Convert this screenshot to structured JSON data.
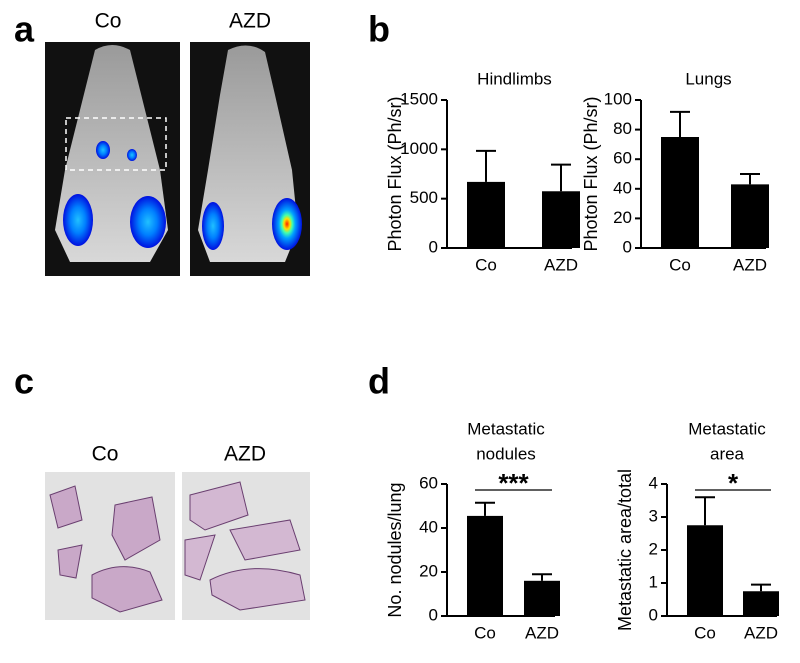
{
  "panels": [
    "a",
    "b",
    "c",
    "d"
  ],
  "image_labels": {
    "mouse": [
      "Co",
      "AZD"
    ],
    "histology": [
      "Co",
      "AZD"
    ]
  },
  "chart_data": [
    {
      "type": "bar",
      "title": [
        "Hindlimbs"
      ],
      "ylabel": "Photon Flux (Ph/sr)",
      "categories": [
        "Co",
        "AZD"
      ],
      "values": [
        670,
        575
      ],
      "errors": [
        315,
        270
      ],
      "color": "#000000",
      "ylim": [
        0,
        1500
      ],
      "yticks": [
        0,
        500,
        1000,
        1500
      ]
    },
    {
      "type": "bar",
      "title": [
        "Lungs"
      ],
      "ylabel": "Photon Flux (Ph/sr)",
      "categories": [
        "Co",
        "AZD"
      ],
      "values": [
        75,
        43
      ],
      "errors": [
        17,
        7
      ],
      "color": "#000000",
      "ylim": [
        0,
        100
      ],
      "yticks": [
        0,
        20,
        40,
        60,
        80,
        100
      ]
    },
    {
      "type": "bar",
      "title": [
        "Metastatic",
        "nodules"
      ],
      "ylabel": "No. nodules/lung",
      "categories": [
        "Co",
        "AZD"
      ],
      "values": [
        45.5,
        16
      ],
      "errors": [
        6,
        3
      ],
      "color": "#000000",
      "ylim": [
        0,
        60
      ],
      "yticks": [
        0,
        20,
        40,
        60
      ],
      "annotation": "***"
    },
    {
      "type": "bar",
      "title": [
        "Metastatic",
        "area"
      ],
      "ylabel": "Metastatic area/total",
      "categories": [
        "Co",
        "AZD"
      ],
      "values": [
        2.75,
        0.75
      ],
      "errors": [
        0.85,
        0.2
      ],
      "color": "#000000",
      "ylim": [
        0,
        4
      ],
      "yticks": [
        0,
        1,
        2,
        3,
        4
      ],
      "annotation": "*"
    }
  ]
}
